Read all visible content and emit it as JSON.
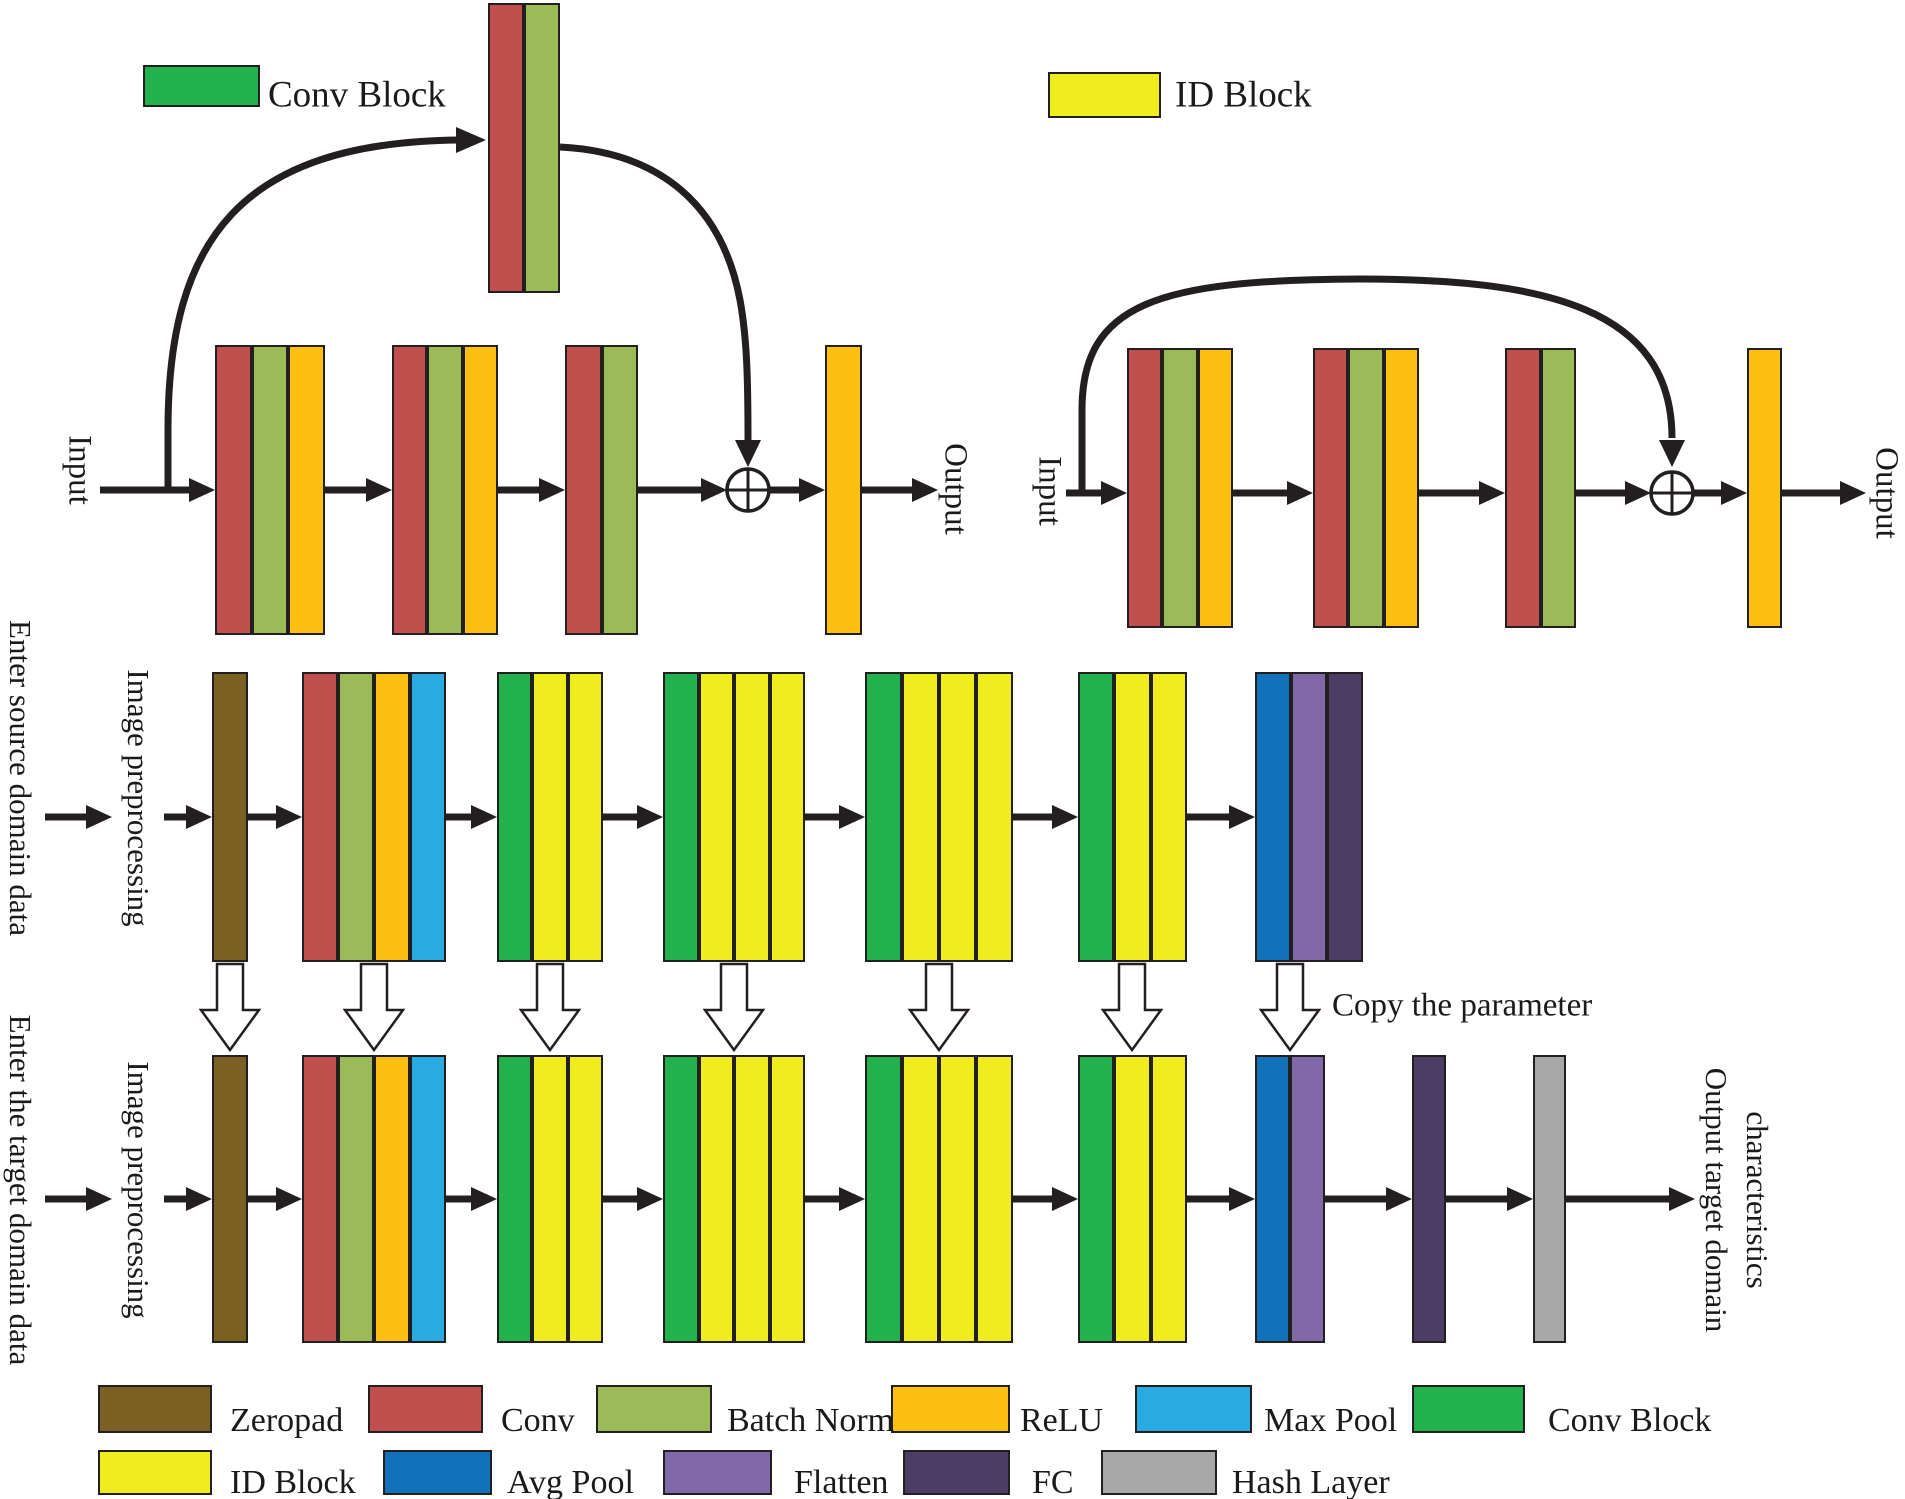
{
  "colors": {
    "stroke": "#231f20",
    "zeropad": "#7b6023",
    "conv": "#c0504d",
    "batch_norm": "#9bbb59",
    "relu": "#fdc010",
    "max_pool": "#29abe2",
    "conv_block": "#22b14c",
    "id_block": "#f0ed1f",
    "avg_pool": "#1172ba",
    "flatten": "#8168a8",
    "fc": "#4b3d64",
    "hash_layer": "#a9a8a8"
  },
  "top_left": {
    "legend_label": "Conv Block",
    "input_label": "Input",
    "output_label": "Output",
    "groups": [
      [
        "conv",
        "batch_norm",
        "relu"
      ],
      [
        "conv",
        "batch_norm",
        "relu"
      ],
      [
        "conv",
        "batch_norm"
      ]
    ],
    "shortcut": [
      "conv",
      "batch_norm"
    ],
    "final": [
      "relu"
    ]
  },
  "top_right": {
    "legend_label": "ID Block",
    "input_label": "Input",
    "output_label": "Output",
    "groups": [
      [
        "conv",
        "batch_norm",
        "relu"
      ],
      [
        "conv",
        "batch_norm",
        "relu"
      ],
      [
        "conv",
        "batch_norm"
      ]
    ],
    "final": [
      "relu"
    ]
  },
  "source_row": {
    "enter_label": "Enter source domain data",
    "preprocess_label": "Image preprocessing",
    "copy_label": "Copy the parameter",
    "stages": [
      [
        "zeropad"
      ],
      [
        "conv",
        "batch_norm",
        "relu",
        "max_pool"
      ],
      [
        "conv_block",
        "id_block",
        "id_block"
      ],
      [
        "conv_block",
        "id_block",
        "id_block",
        "id_block"
      ],
      [
        "conv_block",
        "id_block",
        "id_block",
        "id_block"
      ],
      [
        "conv_block",
        "id_block",
        "id_block"
      ],
      [
        "avg_pool",
        "flatten",
        "fc"
      ]
    ]
  },
  "target_row": {
    "enter_label": "Enter the target domain data",
    "preprocess_label": "Image preprocessing",
    "output_label_line1": "Output target domain",
    "output_label_line2": "characteristics",
    "stages": [
      [
        "zeropad"
      ],
      [
        "conv",
        "batch_norm",
        "relu",
        "max_pool"
      ],
      [
        "conv_block",
        "id_block",
        "id_block"
      ],
      [
        "conv_block",
        "id_block",
        "id_block",
        "id_block"
      ],
      [
        "conv_block",
        "id_block",
        "id_block",
        "id_block"
      ],
      [
        "conv_block",
        "id_block",
        "id_block"
      ],
      [
        "avg_pool",
        "flatten"
      ],
      [
        "fc"
      ],
      [
        "hash_layer"
      ]
    ]
  },
  "legend": {
    "row1": [
      {
        "key": "zeropad",
        "label": "Zeropad"
      },
      {
        "key": "conv",
        "label": "Conv"
      },
      {
        "key": "batch_norm",
        "label": "Batch Norm"
      },
      {
        "key": "relu",
        "label": "ReLU"
      },
      {
        "key": "max_pool",
        "label": "Max Pool"
      },
      {
        "key": "conv_block",
        "label": "Conv Block"
      }
    ],
    "row2": [
      {
        "key": "id_block",
        "label": "ID Block"
      },
      {
        "key": "avg_pool",
        "label": "Avg Pool"
      },
      {
        "key": "flatten",
        "label": "Flatten"
      },
      {
        "key": "fc",
        "label": "FC"
      },
      {
        "key": "hash_layer",
        "label": "Hash Layer"
      }
    ]
  }
}
